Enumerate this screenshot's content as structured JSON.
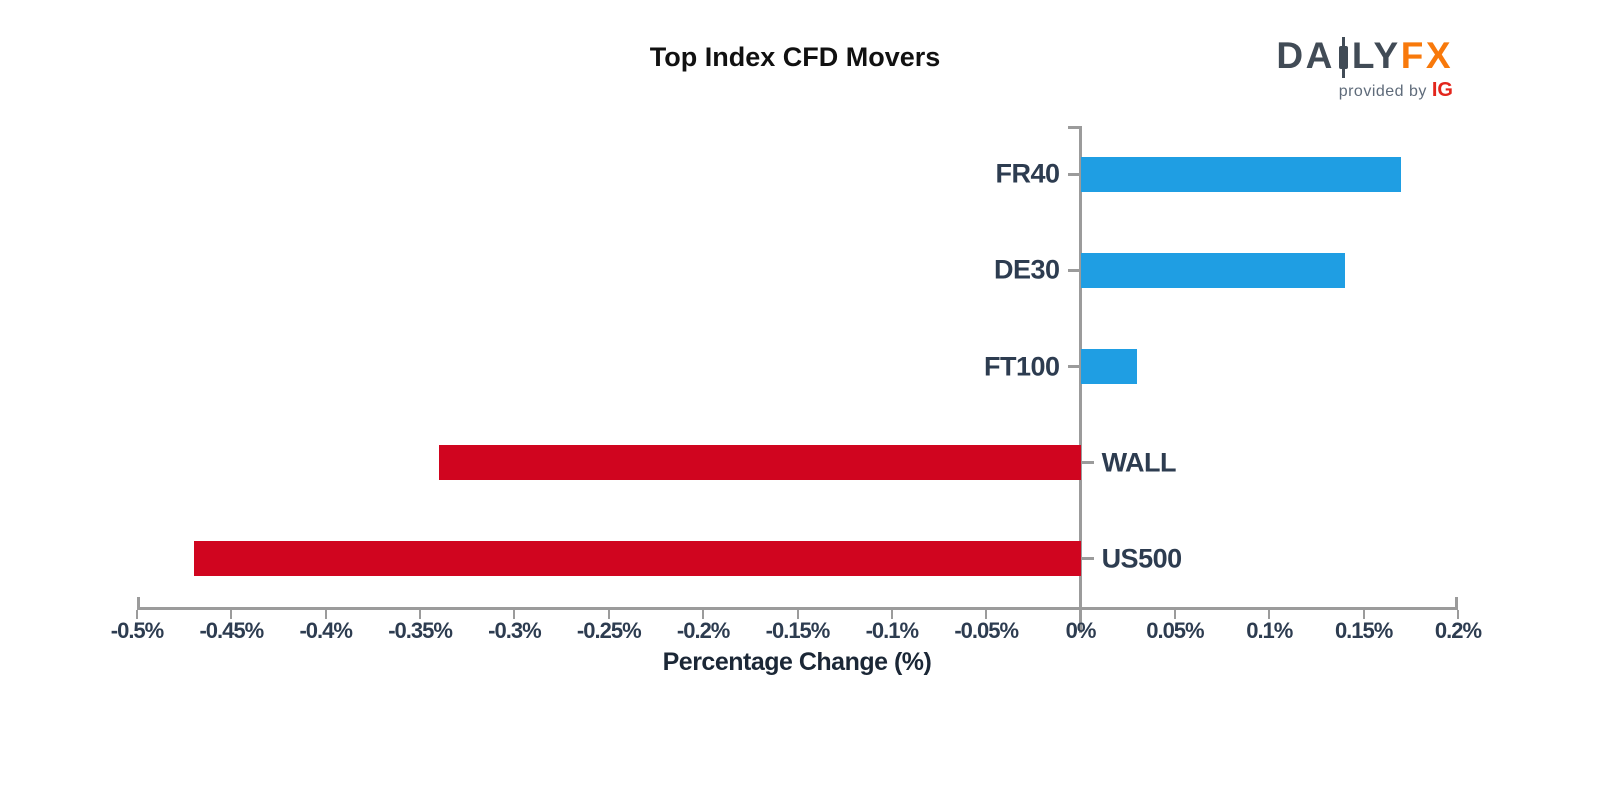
{
  "header": {
    "title": "Top Index CFD Movers",
    "logo": {
      "da": "DA",
      "ly": "LY",
      "fx": "FX",
      "provided_by": "provided by",
      "ig": "IG"
    }
  },
  "chart_data": {
    "type": "bar",
    "orientation": "horizontal",
    "title": "Top Index CFD Movers",
    "xlabel": "Percentage Change (%)",
    "categories": [
      "FR40",
      "DE30",
      "FT100",
      "WALL",
      "US500"
    ],
    "values": [
      0.17,
      0.14,
      0.03,
      -0.34,
      -0.47
    ],
    "xlim": [
      -0.5,
      0.2
    ],
    "grid": false,
    "legend": "none",
    "ticks": [
      {
        "value": -0.5,
        "label": "-0.5%"
      },
      {
        "value": -0.45,
        "label": "-0.45%"
      },
      {
        "value": -0.4,
        "label": "-0.4%"
      },
      {
        "value": -0.35,
        "label": "-0.35%"
      },
      {
        "value": -0.3,
        "label": "-0.3%"
      },
      {
        "value": -0.25,
        "label": "-0.25%"
      },
      {
        "value": -0.2,
        "label": "-0.2%"
      },
      {
        "value": -0.15,
        "label": "-0.15%"
      },
      {
        "value": -0.1,
        "label": "-0.1%"
      },
      {
        "value": -0.05,
        "label": "-0.05%"
      },
      {
        "value": 0,
        "label": "0%"
      },
      {
        "value": 0.05,
        "label": "0.05%"
      },
      {
        "value": 0.1,
        "label": "0.1%"
      },
      {
        "value": 0.15,
        "label": "0.15%"
      },
      {
        "value": 0.2,
        "label": "0.2%"
      }
    ]
  },
  "colors": {
    "bar_positive": "#1f9ee3",
    "bar_negative": "#d0051f",
    "axis": "#9b9b9b",
    "tick_text": "#2d3c50",
    "title_text": "#111111",
    "xlabel_text": "#1b2736",
    "logo_slate": "#414b56",
    "logo_orange": "#f8790b",
    "logo_gray": "#5f6b7a",
    "logo_red": "#e3251c"
  }
}
